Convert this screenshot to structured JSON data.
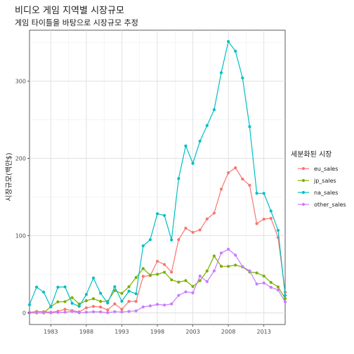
{
  "chart_data": {
    "type": "line",
    "title": "비디오 게임 지역별 시장규모",
    "subtitle": "게임 타이틀을 바탕으로 시장규모 추정",
    "xlabel": "",
    "ylabel": "시장규모(백만$)",
    "xlim": [
      1980,
      2016
    ],
    "ylim": [
      0,
      350
    ],
    "x_ticks": [
      1983,
      1988,
      1993,
      1998,
      2003,
      2008,
      2013
    ],
    "y_ticks": [
      0,
      100,
      200,
      300
    ],
    "grid": true,
    "legend_position": "right",
    "legend_title": "세분화된 시장",
    "x": [
      1980,
      1981,
      1982,
      1983,
      1984,
      1985,
      1986,
      1987,
      1988,
      1989,
      1990,
      1991,
      1992,
      1993,
      1994,
      1995,
      1996,
      1997,
      1998,
      1999,
      2000,
      2001,
      2002,
      2003,
      2004,
      2005,
      2006,
      2007,
      2008,
      2009,
      2010,
      2011,
      2012,
      2013,
      2014,
      2015,
      2016
    ],
    "series": [
      {
        "name": "eu_sales",
        "color": "#F8766D",
        "values": [
          0.7,
          1.9,
          1.6,
          0.8,
          2.1,
          4.7,
          3.0,
          1.4,
          6.6,
          8.4,
          7.6,
          3.9,
          11.7,
          4.7,
          14.9,
          14.9,
          47.3,
          48.3,
          66.9,
          62.7,
          52.8,
          94.9,
          109.7,
          104.3,
          107.4,
          121.6,
          129.2,
          160.2,
          181.4,
          187.9,
          173.3,
          165.2,
          115.6,
          121.4,
          122.4,
          97.6,
          26.8
        ]
      },
      {
        "name": "jp_sales",
        "color": "#7CAE00",
        "values": [
          0.0,
          0.0,
          0.0,
          8.1,
          14.3,
          14.6,
          19.8,
          11.6,
          15.8,
          18.4,
          14.9,
          14.8,
          28.9,
          25.3,
          33.9,
          45.8,
          57.4,
          48.9,
          50.0,
          52.7,
          42.8,
          39.9,
          41.8,
          34.2,
          41.7,
          54.3,
          73.7,
          60.3,
          60.3,
          61.9,
          59.5,
          53.0,
          51.8,
          47.7,
          39.5,
          33.7,
          18.6
        ]
      },
      {
        "name": "na_sales",
        "color": "#00BFC4",
        "values": [
          10.6,
          33.4,
          26.9,
          7.8,
          33.3,
          33.7,
          12.5,
          8.5,
          23.9,
          45.2,
          25.5,
          12.8,
          33.9,
          15.1,
          28.2,
          24.8,
          86.8,
          94.8,
          128.4,
          126.1,
          94.5,
          173.9,
          216.2,
          193.6,
          222.4,
          242.6,
          263.1,
          311.0,
          351.4,
          338.9,
          304.2,
          241.1,
          154.9,
          154.8,
          131.9,
          106.9,
          22.7
        ]
      },
      {
        "name": "other_sales",
        "color": "#C77CFF",
        "values": [
          0.1,
          0.3,
          0.3,
          0.1,
          0.7,
          0.9,
          1.9,
          0.2,
          0.9,
          1.5,
          1.4,
          0.3,
          1.6,
          1.2,
          2.0,
          2.6,
          7.7,
          9.1,
          11.0,
          10.1,
          11.6,
          22.7,
          27.3,
          26.0,
          47.6,
          40.6,
          54.4,
          77.6,
          82.4,
          74.8,
          59.9,
          54.5,
          37.4,
          38.8,
          33.1,
          29.7,
          14.4
        ]
      }
    ]
  }
}
